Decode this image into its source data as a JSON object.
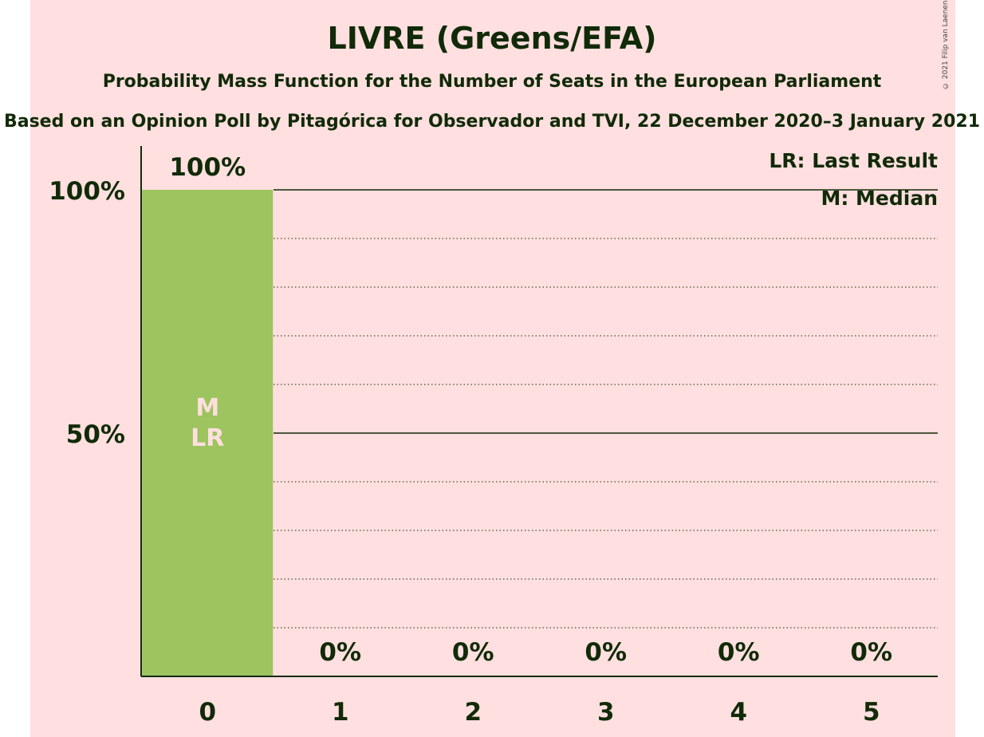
{
  "title": "LIVRE (Greens/EFA)",
  "subtitle": "Probability Mass Function for the Number of Seats in the European Parliament",
  "subtitle2": "Based on an Opinion Poll by Pitagórica for Observador and TVI, 22 December 2020–3 January 2021",
  "copyright": "© 2021 Filip van Laenen",
  "colors": {
    "background": "#ffdfdf",
    "bar": "#9dc45f",
    "text": "#112a08",
    "in_bar_text": "#ffdfdf"
  },
  "chart_data": {
    "type": "bar",
    "categories": [
      "0",
      "1",
      "2",
      "3",
      "4",
      "5"
    ],
    "values": [
      100,
      0,
      0,
      0,
      0,
      0
    ],
    "value_labels": [
      "100%",
      "0%",
      "0%",
      "0%",
      "0%",
      "0%"
    ],
    "ylim": [
      0,
      100
    ],
    "yticks": [
      {
        "value": 50,
        "label": "50%"
      },
      {
        "value": 100,
        "label": "100%"
      }
    ],
    "minor_gridlines": [
      10,
      20,
      30,
      40,
      60,
      70,
      80,
      90
    ],
    "bar_markers": [
      {
        "category": "0",
        "lines": [
          "M",
          "LR"
        ]
      }
    ],
    "legend": [
      "LR: Last Result",
      "M: Median"
    ],
    "legend_position": "top-right",
    "grid": true
  }
}
